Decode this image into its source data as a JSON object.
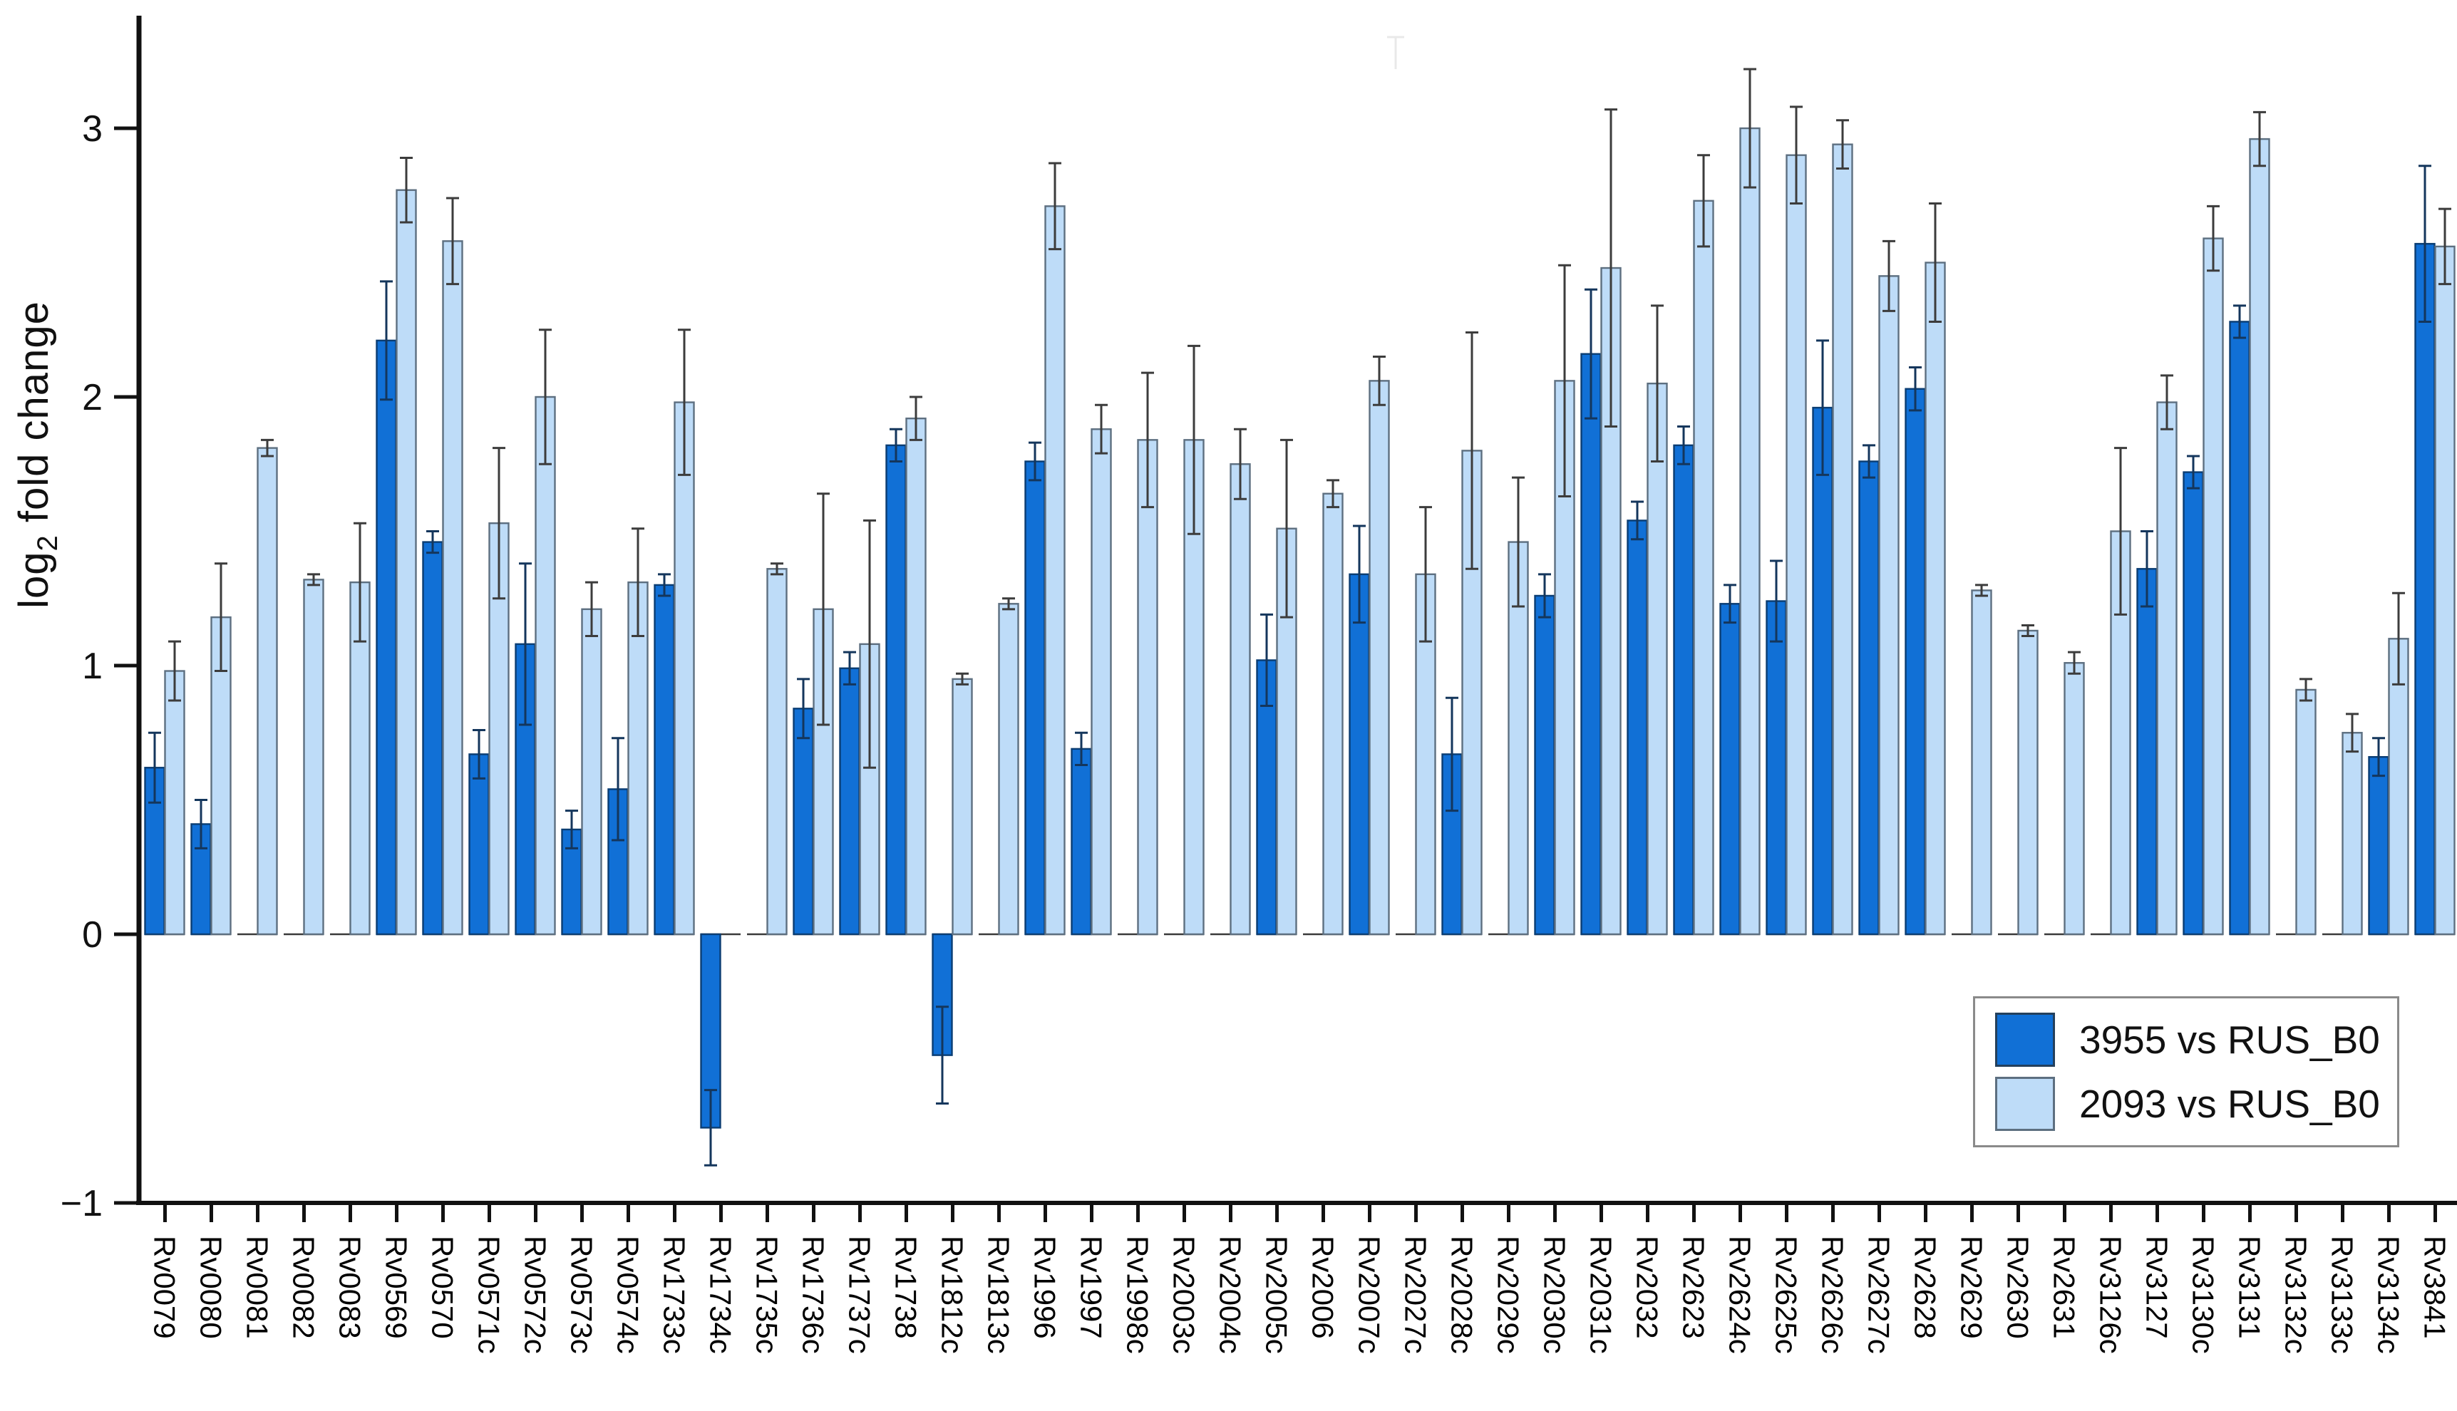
{
  "ylabel": {
    "prefix": "log",
    "sub": "2",
    "rest": " fold change"
  },
  "legend": {
    "entries": [
      {
        "label": "3955 vs RUS_B0",
        "color": "#1170D6"
      },
      {
        "label": "2093 vs RUS_B0",
        "color": "#BEDCF8"
      }
    ]
  },
  "chart_data": {
    "type": "bar",
    "title": "",
    "xlabel": "",
    "ylabel": "log2 fold change",
    "ylim": [
      -1,
      3.45
    ],
    "yticks": [
      3,
      2,
      1,
      0,
      -1
    ],
    "grid": false,
    "legend_position": "bottom-right",
    "categories": [
      "Rv0079",
      "Rv0080",
      "Rv0081",
      "Rv0082",
      "Rv0083",
      "Rv0569",
      "Rv0570",
      "Rv0571c",
      "Rv0572c",
      "Rv0573c",
      "Rv0574c",
      "Rv1733c",
      "Rv1734c",
      "Rv1735c",
      "Rv1736c",
      "Rv1737c",
      "Rv1738",
      "Rv1812c",
      "Rv1813c",
      "Rv1996",
      "Rv1997",
      "Rv1998c",
      "Rv2003c",
      "Rv2004c",
      "Rv2005c",
      "Rv2006",
      "Rv2007c",
      "Rv2027c",
      "Rv2028c",
      "Rv2029c",
      "Rv2030c",
      "Rv2031c",
      "Rv2032",
      "Rv2623",
      "Rv2624c",
      "Rv2625c",
      "Rv2626c",
      "Rv2627c",
      "Rv2628",
      "Rv2629",
      "Rv2630",
      "Rv2631",
      "Rv3126c",
      "Rv3127",
      "Rv3130c",
      "Rv3131",
      "Rv3132c",
      "Rv3133c",
      "Rv3134c",
      "Rv3841"
    ],
    "series": [
      {
        "name": "3955 vs RUS_B0",
        "color": "#1170D6",
        "edge_color": "#0a3d73",
        "error_color": "#14365c",
        "values": [
          0.62,
          0.41,
          null,
          null,
          null,
          2.21,
          1.46,
          0.67,
          1.08,
          0.39,
          0.54,
          1.3,
          -0.72,
          null,
          0.84,
          0.99,
          1.82,
          -0.45,
          null,
          1.76,
          0.69,
          null,
          null,
          null,
          1.02,
          null,
          1.34,
          null,
          0.67,
          null,
          1.26,
          2.16,
          1.54,
          1.82,
          1.23,
          1.24,
          1.96,
          1.76,
          2.03,
          null,
          null,
          null,
          null,
          1.36,
          1.72,
          2.28,
          null,
          null,
          0.66,
          2.57
        ],
        "errors": [
          0.13,
          0.09,
          null,
          null,
          null,
          0.22,
          0.04,
          0.09,
          0.3,
          0.07,
          0.19,
          0.04,
          0.14,
          null,
          0.11,
          0.06,
          0.06,
          0.18,
          null,
          0.07,
          0.06,
          null,
          null,
          null,
          0.17,
          null,
          0.18,
          null,
          0.21,
          null,
          0.08,
          0.24,
          0.07,
          0.07,
          0.07,
          0.15,
          0.25,
          0.06,
          0.08,
          null,
          null,
          null,
          null,
          0.14,
          0.06,
          0.06,
          null,
          null,
          0.07,
          0.29
        ]
      },
      {
        "name": "2093 vs RUS_B0",
        "color": "#BEDCF8",
        "edge_color": "#5d6f80",
        "error_color": "#3c3c3c",
        "values": [
          0.98,
          1.18,
          1.81,
          1.32,
          1.31,
          2.77,
          2.58,
          1.53,
          2.0,
          1.21,
          1.31,
          1.98,
          null,
          1.36,
          1.21,
          1.08,
          1.92,
          0.95,
          1.23,
          2.71,
          1.88,
          1.84,
          1.84,
          1.75,
          1.51,
          1.64,
          2.06,
          1.34,
          1.8,
          1.46,
          2.06,
          2.48,
          2.05,
          2.73,
          3.0,
          2.9,
          2.94,
          2.45,
          2.5,
          1.28,
          1.13,
          1.01,
          1.5,
          1.98,
          2.59,
          2.96,
          0.91,
          0.75,
          1.1,
          2.56
        ],
        "errors": [
          0.11,
          0.2,
          0.03,
          0.02,
          0.22,
          0.12,
          0.16,
          0.28,
          0.25,
          0.1,
          0.2,
          0.27,
          null,
          0.02,
          0.43,
          0.46,
          0.08,
          0.02,
          0.02,
          0.16,
          0.09,
          0.25,
          0.35,
          0.13,
          0.33,
          0.05,
          0.09,
          0.25,
          0.44,
          0.24,
          0.43,
          0.59,
          0.29,
          0.17,
          0.22,
          0.18,
          0.09,
          0.13,
          0.22,
          0.02,
          0.02,
          0.04,
          0.31,
          0.1,
          0.12,
          0.1,
          0.04,
          0.07,
          0.17,
          0.14
        ]
      }
    ]
  }
}
